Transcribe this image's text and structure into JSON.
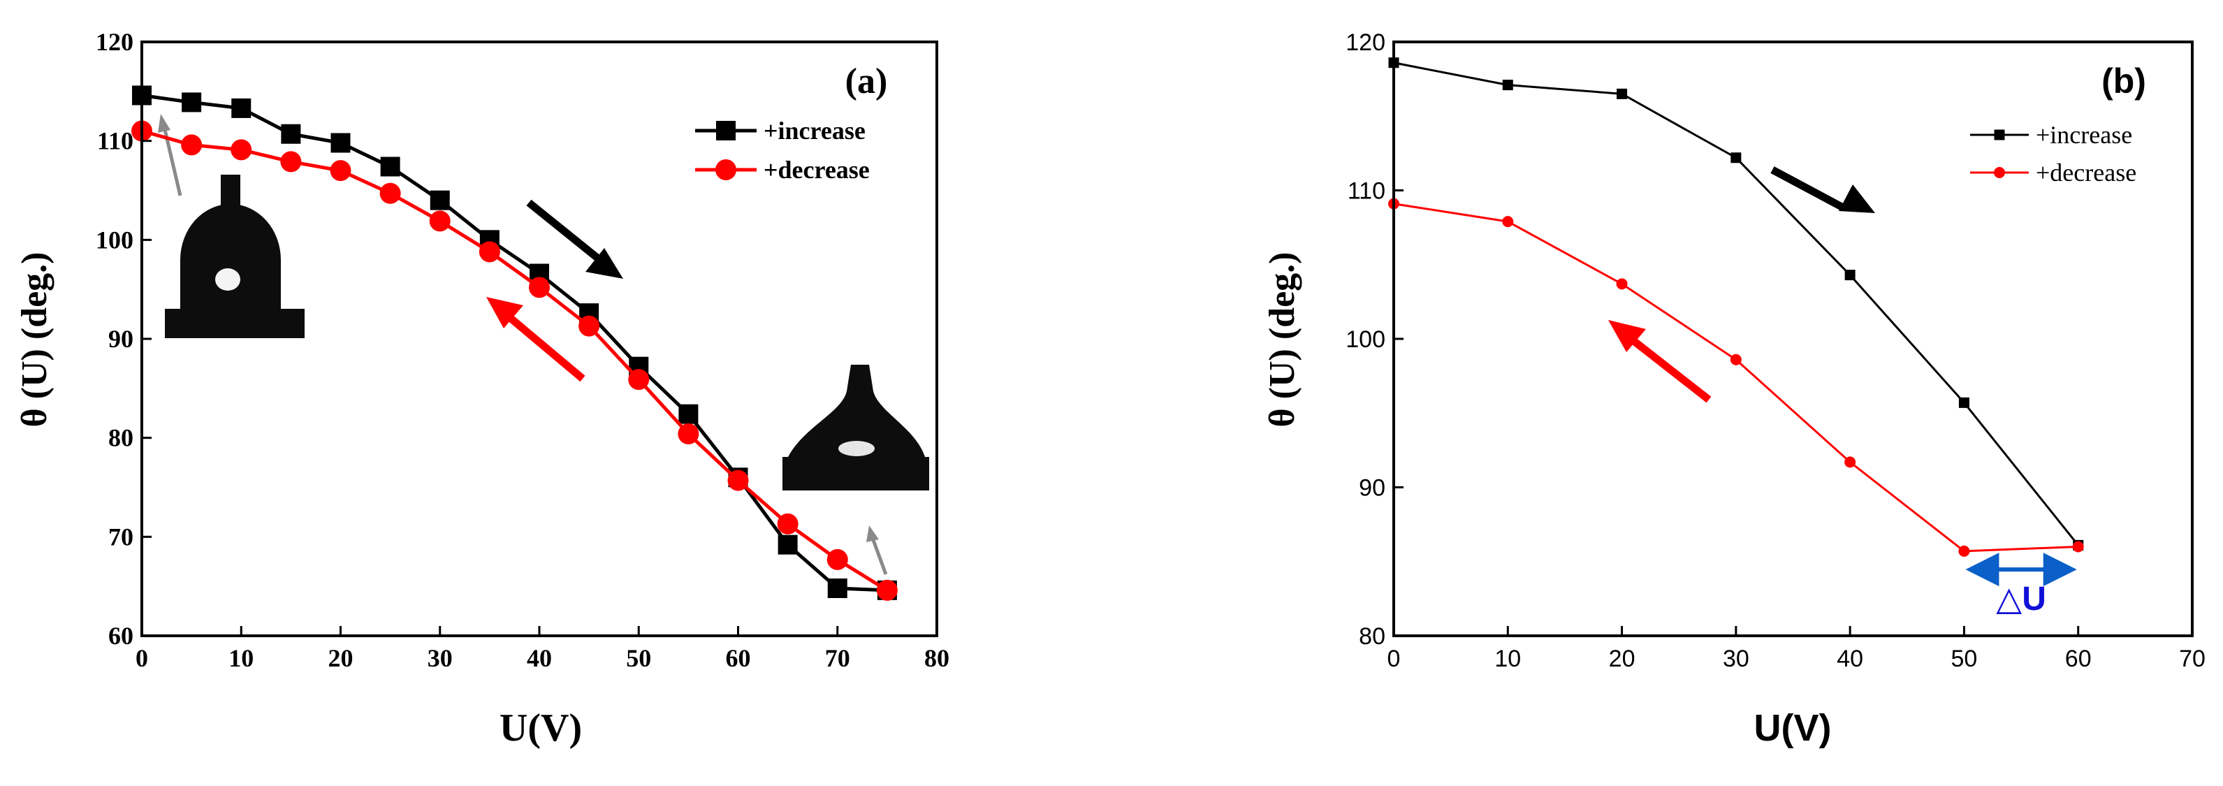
{
  "colors": {
    "increase": "#000000",
    "decrease": "#ff0000",
    "delta": "#0a5fc8",
    "delta_text": "#1010d8"
  },
  "chart_data": [
    {
      "type": "line",
      "panel": "(a)",
      "xlabel": "U(V)",
      "ylabel": "θ (U) (deg.)",
      "xlim": [
        0,
        80
      ],
      "ylim": [
        60,
        120
      ],
      "xticks": [
        0,
        10,
        20,
        30,
        40,
        50,
        60,
        70,
        80
      ],
      "yticks": [
        60,
        70,
        80,
        90,
        100,
        110,
        120
      ],
      "legend_position": "top-right",
      "series": [
        {
          "name": "+increase",
          "marker": "square",
          "x": [
            0,
            5,
            10,
            15,
            20,
            25,
            30,
            35,
            40,
            45,
            50,
            55,
            60,
            65,
            70,
            75
          ],
          "y": [
            114.6,
            113.9,
            113.3,
            110.7,
            109.8,
            107.4,
            104.0,
            100.0,
            96.6,
            92.6,
            87.2,
            82.4,
            76.0,
            69.2,
            64.8,
            64.6
          ]
        },
        {
          "name": "+decrease",
          "marker": "circle",
          "x": [
            0,
            5,
            10,
            15,
            20,
            25,
            30,
            35,
            40,
            45,
            50,
            55,
            60,
            65,
            70,
            75
          ],
          "y": [
            111.0,
            109.6,
            109.1,
            107.9,
            107.0,
            104.7,
            101.9,
            98.8,
            95.2,
            91.3,
            85.9,
            80.4,
            75.7,
            71.3,
            67.7,
            64.6
          ]
        }
      ],
      "annotations": [
        "increase-direction arrow",
        "decrease-direction arrow",
        "droplet inset at 0 V",
        "droplet inset at 75 V"
      ]
    },
    {
      "type": "line",
      "panel": "(b)",
      "xlabel": "U(V)",
      "ylabel": "θ (U) (deg.)",
      "xlim": [
        0,
        70
      ],
      "ylim": [
        80,
        120
      ],
      "xticks": [
        0,
        10,
        20,
        30,
        40,
        50,
        60,
        70
      ],
      "yticks": [
        80,
        90,
        100,
        110,
        120
      ],
      "legend_position": "top-right",
      "series": [
        {
          "name": "+increase",
          "marker": "square",
          "x": [
            0,
            10,
            20,
            30,
            40,
            50,
            60
          ],
          "y": [
            118.6,
            117.1,
            116.5,
            112.2,
            104.3,
            95.7,
            86.1
          ]
        },
        {
          "name": "+decrease",
          "marker": "circle",
          "x": [
            0,
            10,
            20,
            30,
            40,
            50,
            60
          ],
          "y": [
            109.1,
            107.9,
            103.7,
            98.6,
            91.7,
            85.7,
            86.0
          ]
        }
      ],
      "annotation_label": "△U",
      "annotations": [
        "increase-direction arrow",
        "decrease-direction arrow",
        "ΔU double arrow from 50 V to 60 V"
      ]
    }
  ]
}
